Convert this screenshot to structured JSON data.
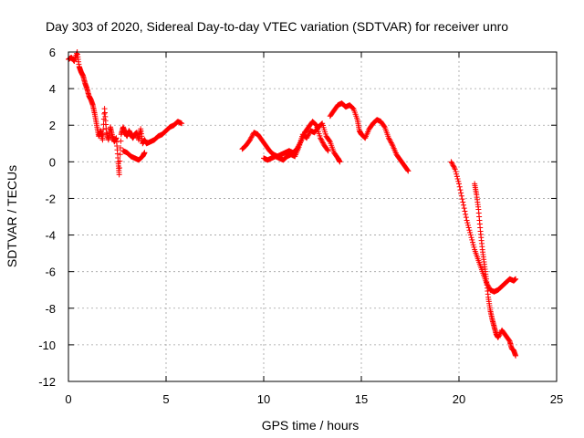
{
  "chart_data": {
    "type": "scatter",
    "title": "Day 303 of 2020, Sidereal Day-to-day VTEC variation (SDTVAR) for receiver unro",
    "xlabel": "GPS time / hours",
    "ylabel": "SDTVAR / TECUs",
    "xlim": [
      0,
      25
    ],
    "ylim": [
      -12,
      6
    ],
    "xticks": [
      "0",
      "5",
      "10",
      "15",
      "20",
      "25"
    ],
    "yticks": [
      "6",
      "4",
      "2",
      "0",
      "-2",
      "-4",
      "-6",
      "-8",
      "-10",
      "-12"
    ],
    "grid": true,
    "marker": "+",
    "color": "#ff0000",
    "series": [
      {
        "name": "SDTVAR",
        "segments": [
          [
            [
              0.0,
              5.6
            ],
            [
              0.15,
              5.7
            ],
            [
              0.3,
              5.5
            ],
            [
              0.45,
              6.0
            ],
            [
              0.55,
              5.2
            ],
            [
              0.65,
              4.9
            ],
            [
              0.75,
              4.7
            ],
            [
              0.85,
              4.3
            ],
            [
              0.95,
              4.0
            ],
            [
              1.05,
              3.6
            ],
            [
              1.15,
              3.4
            ],
            [
              1.25,
              3.1
            ],
            [
              1.35,
              2.6
            ],
            [
              1.45,
              2.0
            ],
            [
              1.55,
              1.4
            ],
            [
              1.65,
              1.7
            ],
            [
              1.75,
              1.2
            ],
            [
              1.85,
              2.9
            ],
            [
              1.95,
              1.6
            ],
            [
              2.05,
              1.2
            ],
            [
              2.15,
              1.9
            ],
            [
              2.25,
              1.4
            ],
            [
              2.35,
              1.1
            ],
            [
              2.45,
              1.3
            ],
            [
              2.55,
              0.0
            ],
            [
              2.6,
              -0.7
            ],
            [
              2.7,
              1.5
            ],
            [
              2.8,
              1.9
            ],
            [
              2.9,
              1.6
            ],
            [
              3.0,
              1.4
            ],
            [
              3.1,
              1.7
            ],
            [
              3.2,
              1.5
            ],
            [
              3.3,
              1.3
            ],
            [
              3.4,
              1.5
            ],
            [
              3.5,
              1.6
            ],
            [
              3.6,
              1.2
            ],
            [
              3.7,
              1.8
            ],
            [
              3.8,
              1.0
            ],
            [
              3.9,
              1.2
            ],
            [
              4.0,
              1.0
            ],
            [
              4.2,
              1.1
            ],
            [
              4.4,
              1.2
            ],
            [
              4.6,
              1.4
            ],
            [
              4.8,
              1.5
            ],
            [
              5.0,
              1.7
            ],
            [
              5.2,
              1.9
            ],
            [
              5.4,
              2.0
            ],
            [
              5.6,
              2.2
            ],
            [
              5.8,
              2.1
            ]
          ],
          [
            [
              2.8,
              0.6
            ],
            [
              3.0,
              0.5
            ],
            [
              3.2,
              0.3
            ],
            [
              3.4,
              0.2
            ],
            [
              3.6,
              0.1
            ],
            [
              3.8,
              0.3
            ],
            [
              3.9,
              0.5
            ]
          ],
          [
            [
              8.9,
              0.7
            ],
            [
              9.1,
              0.9
            ],
            [
              9.3,
              1.2
            ],
            [
              9.5,
              1.6
            ],
            [
              9.7,
              1.5
            ],
            [
              9.9,
              1.2
            ],
            [
              10.1,
              0.9
            ],
            [
              10.3,
              0.6
            ],
            [
              10.5,
              0.4
            ],
            [
              10.7,
              0.3
            ],
            [
              10.9,
              0.4
            ],
            [
              11.1,
              0.5
            ],
            [
              11.3,
              0.6
            ],
            [
              11.5,
              0.5
            ],
            [
              11.7,
              0.7
            ],
            [
              11.9,
              1.1
            ],
            [
              12.1,
              1.6
            ],
            [
              12.3,
              1.9
            ],
            [
              12.5,
              2.2
            ],
            [
              12.7,
              2.0
            ],
            [
              12.9,
              1.3
            ],
            [
              13.1,
              0.9
            ],
            [
              13.3,
              0.6
            ]
          ],
          [
            [
              10.0,
              0.2
            ],
            [
              10.2,
              0.1
            ],
            [
              10.4,
              0.2
            ],
            [
              10.6,
              0.3
            ],
            [
              10.8,
              0.2
            ],
            [
              11.0,
              0.1
            ],
            [
              11.2,
              0.3
            ],
            [
              11.4,
              0.4
            ],
            [
              11.6,
              0.3
            ],
            [
              11.8,
              0.8
            ],
            [
              12.0,
              1.5
            ],
            [
              12.2,
              1.3
            ],
            [
              12.4,
              1.7
            ],
            [
              12.6,
              1.6
            ],
            [
              12.8,
              1.9
            ],
            [
              13.0,
              2.1
            ],
            [
              13.2,
              1.4
            ],
            [
              13.4,
              1.1
            ],
            [
              13.6,
              0.5
            ],
            [
              13.8,
              0.2
            ],
            [
              13.9,
              0.0
            ]
          ],
          [
            [
              13.4,
              2.5
            ],
            [
              13.6,
              2.8
            ],
            [
              13.8,
              3.1
            ],
            [
              14.0,
              3.2
            ],
            [
              14.2,
              3.0
            ],
            [
              14.4,
              3.1
            ],
            [
              14.6,
              2.9
            ],
            [
              14.8,
              2.3
            ],
            [
              14.9,
              1.7
            ],
            [
              15.0,
              1.5
            ],
            [
              15.2,
              1.3
            ],
            [
              15.4,
              1.8
            ],
            [
              15.6,
              2.1
            ],
            [
              15.8,
              2.3
            ],
            [
              16.0,
              2.2
            ],
            [
              16.2,
              1.9
            ],
            [
              16.4,
              1.3
            ],
            [
              16.6,
              0.9
            ],
            [
              16.8,
              0.4
            ],
            [
              17.0,
              0.1
            ],
            [
              17.2,
              -0.2
            ],
            [
              17.4,
              -0.5
            ]
          ],
          [
            [
              19.6,
              0.0
            ],
            [
              19.8,
              -0.4
            ],
            [
              20.0,
              -1.2
            ],
            [
              20.2,
              -2.2
            ],
            [
              20.4,
              -3.2
            ],
            [
              20.6,
              -4.0
            ],
            [
              20.8,
              -4.8
            ],
            [
              21.0,
              -5.4
            ],
            [
              21.2,
              -6.0
            ],
            [
              21.4,
              -6.6
            ],
            [
              21.6,
              -7.0
            ],
            [
              21.8,
              -7.1
            ],
            [
              22.0,
              -7.0
            ],
            [
              22.2,
              -6.8
            ],
            [
              22.4,
              -6.6
            ],
            [
              22.6,
              -6.4
            ],
            [
              22.8,
              -6.5
            ],
            [
              22.9,
              -6.4
            ]
          ],
          [
            [
              20.8,
              -1.2
            ],
            [
              20.9,
              -1.8
            ],
            [
              21.0,
              -2.6
            ],
            [
              21.1,
              -3.8
            ],
            [
              21.2,
              -4.8
            ],
            [
              21.3,
              -5.6
            ],
            [
              21.4,
              -6.4
            ],
            [
              21.5,
              -7.4
            ],
            [
              21.6,
              -8.1
            ],
            [
              21.7,
              -8.6
            ],
            [
              21.8,
              -9.0
            ],
            [
              21.9,
              -9.4
            ],
            [
              22.0,
              -9.6
            ],
            [
              22.2,
              -9.2
            ],
            [
              22.4,
              -9.5
            ],
            [
              22.6,
              -9.8
            ],
            [
              22.7,
              -10.2
            ],
            [
              22.8,
              -10.3
            ],
            [
              22.9,
              -10.6
            ]
          ]
        ]
      }
    ]
  }
}
